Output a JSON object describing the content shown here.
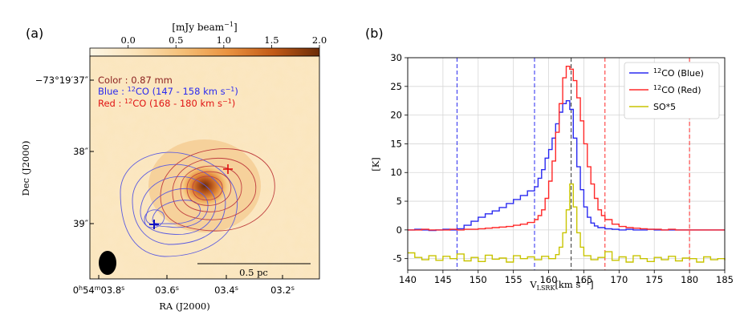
{
  "panel_labels": {
    "a": "(a)",
    "b": "(b)"
  },
  "colors": {
    "blue": "#2a2af0",
    "red": "#ff2828",
    "olive": "#c8c400",
    "grid": "#d6d6d6",
    "dashed_black": "#303030"
  },
  "colorbar": {
    "label": "[mJy beam",
    "label_exp": "−1",
    "label_close": "]",
    "ticks": [
      {
        "value": 0.0,
        "label": "0.0"
      },
      {
        "value": 0.5,
        "label": "0.5"
      },
      {
        "value": 1.0,
        "label": "1.0"
      },
      {
        "value": 1.5,
        "label": "1.5"
      },
      {
        "value": 2.0,
        "label": "2.0"
      }
    ],
    "range": [
      -0.4,
      2.0
    ]
  },
  "map": {
    "legend": {
      "color_line": "Color : 0.87 mm",
      "blue_prefix": "Blue : ",
      "blue_iso": "12",
      "blue_rest": "CO (147 - 158 km s",
      "blue_exp": "−1",
      "blue_close": ")",
      "red_prefix": "Red : ",
      "red_iso": "12",
      "red_rest": "CO (168 - 180 km s",
      "red_exp": "−1",
      "red_close": ")"
    },
    "dec_ticks": [
      {
        "label": "−73°19′37″"
      },
      {
        "label": "38″"
      },
      {
        "label": "39″"
      }
    ],
    "ra_ticks": [
      {
        "h": "0",
        "m": "54",
        "s": "03.8",
        "prefix": "h",
        "mid": "m",
        "suffix": "s"
      },
      {
        "s": "03.6",
        "suffix": "s"
      },
      {
        "s": "03.4",
        "suffix": "s"
      },
      {
        "s": "03.2",
        "suffix": "s"
      }
    ],
    "xlabel": "RA (J2000)",
    "ylabel": "Dec (J2000)",
    "scalebar_label": "0.5 pc"
  },
  "chart_data": {
    "type": "line",
    "xlabel_main": "V",
    "xlabel_sub": "LSRK",
    "xlabel_rest": "[km s",
    "xlabel_exp": "−1",
    "xlabel_close": "]",
    "ylabel": "[K]",
    "xlim": [
      140,
      185
    ],
    "ylim": [
      -7,
      30
    ],
    "xticks": [
      140,
      145,
      150,
      155,
      160,
      165,
      170,
      175,
      180,
      185
    ],
    "yticks": [
      -5,
      0,
      5,
      10,
      15,
      20,
      25,
      30
    ],
    "grid": true,
    "legend_position": "top-right",
    "vlines": [
      {
        "x": 147,
        "series": "blue"
      },
      {
        "x": 158,
        "series": "blue"
      },
      {
        "x": 163.2,
        "series": "black"
      },
      {
        "x": 168,
        "series": "red"
      },
      {
        "x": 180,
        "series": "red"
      }
    ],
    "series": [
      {
        "name": "Blue",
        "legend_iso": "12",
        "legend_rest": "CO (Blue)",
        "color": "#2a2af0",
        "x": [
          140,
          141,
          142,
          143,
          144,
          145,
          146,
          147,
          148,
          149,
          150,
          151,
          152,
          153,
          154,
          155,
          156,
          157,
          158,
          158.5,
          159,
          159.5,
          160,
          160.5,
          161,
          161.5,
          162,
          162.5,
          163,
          163.5,
          164,
          164.5,
          165,
          165.5,
          166,
          166.5,
          167,
          168,
          169,
          170,
          171,
          172,
          173,
          174,
          175,
          176,
          177,
          178,
          179,
          180,
          181,
          182,
          183,
          184,
          185
        ],
        "y": [
          0,
          0.1,
          0,
          -0.1,
          0,
          0.1,
          0,
          0.2,
          0.8,
          1.5,
          2.2,
          2.8,
          3.3,
          3.9,
          4.6,
          5.3,
          6,
          6.8,
          7.5,
          9,
          10.5,
          12.5,
          14,
          16,
          18.5,
          20.5,
          22,
          22.5,
          21,
          16,
          11,
          7,
          4,
          2.2,
          1.2,
          0.7,
          0.4,
          0.2,
          0.1,
          0,
          0.1,
          0,
          0,
          0.1,
          0,
          0,
          0,
          0,
          0,
          0,
          0,
          0,
          0,
          0,
          0
        ]
      },
      {
        "name": "Red",
        "legend_iso": "12",
        "legend_rest": "CO (Red)",
        "color": "#ff2828",
        "x": [
          140,
          141,
          142,
          143,
          144,
          145,
          146,
          147,
          148,
          149,
          150,
          151,
          152,
          153,
          154,
          155,
          156,
          157,
          158,
          158.5,
          159,
          159.5,
          160,
          160.5,
          161,
          161.5,
          162,
          162.5,
          163,
          163.5,
          164,
          164.5,
          165,
          165.5,
          166,
          166.5,
          167,
          167.5,
          168,
          169,
          170,
          171,
          172,
          173,
          174,
          175,
          176,
          177,
          178,
          179,
          180,
          181,
          182,
          183,
          184,
          185
        ],
        "y": [
          0,
          0,
          0.1,
          0,
          0,
          0,
          0.1,
          0,
          0.1,
          0.1,
          0.2,
          0.3,
          0.4,
          0.5,
          0.6,
          0.8,
          1,
          1.3,
          1.8,
          2.5,
          3.5,
          5.5,
          8.5,
          12,
          17,
          22,
          26.5,
          28.5,
          28,
          26,
          23,
          19,
          15,
          11,
          8,
          5.5,
          3.5,
          2.5,
          1.8,
          1,
          0.6,
          0.4,
          0.3,
          0.2,
          0.1,
          0.1,
          0,
          0.1,
          0,
          0,
          0,
          0,
          0,
          0,
          0,
          0
        ]
      },
      {
        "name": "SO*5",
        "legend_rest": "SO*5",
        "color": "#c8c400",
        "x": [
          140,
          141,
          142,
          143,
          144,
          145,
          146,
          147,
          148,
          149,
          150,
          151,
          152,
          153,
          154,
          155,
          156,
          157,
          158,
          159,
          160,
          161,
          161.5,
          162,
          162.5,
          163,
          163.5,
          164,
          164.5,
          165,
          166,
          167,
          168,
          169,
          170,
          171,
          172,
          173,
          174,
          175,
          176,
          177,
          178,
          179,
          180,
          181,
          182,
          183,
          184,
          185
        ],
        "y": [
          -4,
          -4.8,
          -5.2,
          -4.5,
          -5.3,
          -4.6,
          -5,
          -4.2,
          -5.4,
          -4.8,
          -5.5,
          -4.4,
          -5.1,
          -4.9,
          -5.6,
          -4.5,
          -5,
          -4.7,
          -5.2,
          -4.6,
          -5,
          -4.3,
          -3,
          -0.5,
          3.5,
          8,
          4,
          -0.5,
          -3,
          -4.5,
          -5.2,
          -4.8,
          -3.8,
          -5.3,
          -4.7,
          -5.6,
          -4.5,
          -5,
          -5.5,
          -4.8,
          -5.2,
          -4.6,
          -5.4,
          -4.9,
          -5,
          -5.6,
          -4.7,
          -5.2,
          -5,
          -5.3
        ]
      }
    ]
  }
}
